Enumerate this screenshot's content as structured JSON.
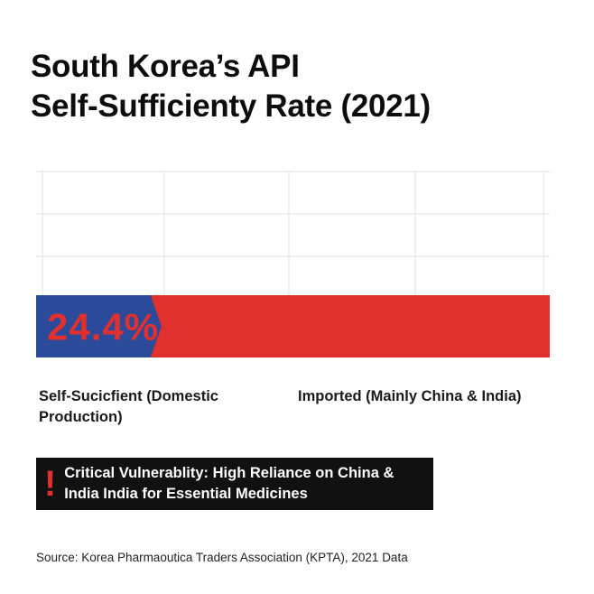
{
  "title": {
    "line1": "South Korea’s API",
    "line2": "Self-Sufficienty Rate (2021)"
  },
  "chart_data": {
    "type": "bar",
    "orientation": "horizontal-stacked",
    "grid": true,
    "xlim": [
      0,
      100
    ],
    "segments": [
      {
        "name": "Self-Sucicfient (Domestic Production)",
        "value": 24.4,
        "color": "#2b4a9a"
      },
      {
        "name": "Imported (Mainly China & India)",
        "value": 75.6,
        "color": "#e0312f"
      }
    ],
    "data_label": "24.4%",
    "data_label_color": "#e0312f"
  },
  "labels": {
    "left": "Self-Sucicfient (Domestic Production)",
    "right": "Imported (Mainly China & India)"
  },
  "alert": {
    "icon": "exclamation-icon",
    "icon_glyph": "!",
    "text": "Critical Vulnerablity: High Reliance on China & India India for Essential Medicines"
  },
  "source": "Source: Korea Pharmaoutica Traders Association (KPTA), 2021 Data"
}
